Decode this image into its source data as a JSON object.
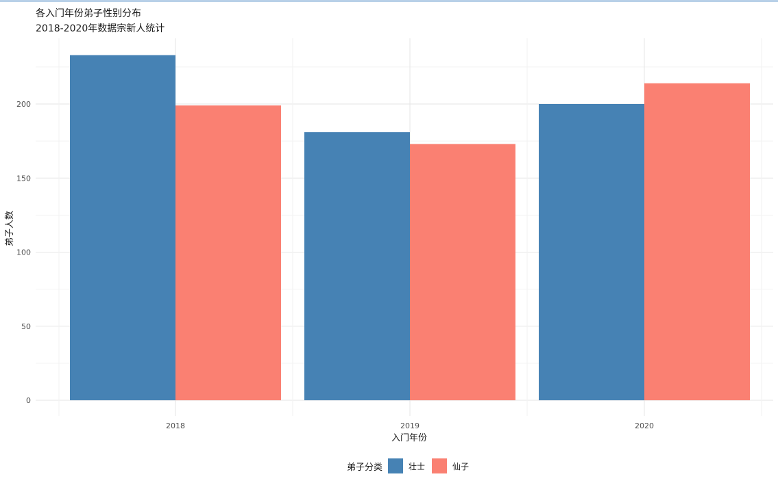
{
  "chart_data": {
    "type": "bar",
    "title": "各入门年份弟子性别分布",
    "subtitle": "2018-2020年数据宗新人统计",
    "xlabel": "入门年份",
    "ylabel": "弟子人数",
    "categories": [
      "2018",
      "2019",
      "2020"
    ],
    "series": [
      {
        "name": "壮士",
        "values": [
          233,
          181,
          200
        ],
        "color": "#4682B4"
      },
      {
        "name": "仙子",
        "values": [
          199,
          173,
          214
        ],
        "color": "#FA8072"
      }
    ],
    "ylim": [
      0,
      245
    ],
    "yticks": [
      0,
      50,
      100,
      150,
      200
    ],
    "grid": true,
    "legend": {
      "title": "弟子分类",
      "position": "bottom"
    }
  }
}
